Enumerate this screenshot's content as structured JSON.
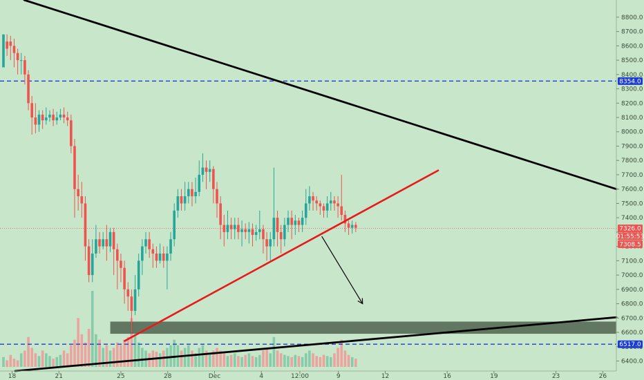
{
  "chart_data": {
    "type": "candlestick",
    "y_axis": {
      "range": [
        6330,
        8920
      ],
      "ticks": [
        "8800.0",
        "8700.0",
        "8600.0",
        "8500.0",
        "8400.0",
        "8300.0",
        "8200.0",
        "8100.0",
        "8000.0",
        "7900.0",
        "7800.0",
        "7700.0",
        "7600.0",
        "7500.0",
        "7400.0",
        "7300.0",
        "7200.0",
        "7100.0",
        "7000.0",
        "6900.0",
        "6800.0",
        "6700.0",
        "6600.0",
        "6500.0",
        "6400.0"
      ],
      "tick_values": [
        8800,
        8700,
        8600,
        8500,
        8400,
        8300,
        8200,
        8100,
        8000,
        7900,
        7800,
        7700,
        7600,
        7500,
        7400,
        7300,
        7200,
        7100,
        7000,
        6900,
        6800,
        6700,
        6600,
        6500,
        6400
      ]
    },
    "x_axis": {
      "range": [
        0,
        40.8
      ],
      "ticks": [
        {
          "label": "18",
          "value": 0.8
        },
        {
          "label": "21",
          "value": 3.9
        },
        {
          "label": "25",
          "value": 8.0
        },
        {
          "label": "28",
          "value": 11.1
        },
        {
          "label": "Dec",
          "value": 14.2
        },
        {
          "label": "4",
          "value": 17.3
        },
        {
          "label": "12:00",
          "value": 19.85
        },
        {
          "label": "9",
          "value": 22.4
        },
        {
          "label": "12",
          "value": 25.5
        },
        {
          "label": "16",
          "value": 29.6
        },
        {
          "label": "19",
          "value": 32.7
        },
        {
          "label": "23",
          "value": 36.8
        },
        {
          "label": "26",
          "value": 39.9
        }
      ]
    },
    "price_tags": [
      {
        "label": "8354.0",
        "value": 8354,
        "color": "#1a3bd6"
      },
      {
        "label": "7326.0",
        "value": 7326,
        "color": "#ef5350"
      },
      {
        "label": "01:55:53",
        "value": 7290,
        "color": "#ef5350"
      },
      {
        "label": "7308.5",
        "value": 7260,
        "color": "#ef5350"
      },
      {
        "label": "6517.0",
        "value": 6517,
        "color": "#1a3bd6"
      }
    ],
    "horizontal_lines": [
      {
        "value": 8354,
        "color": "#1a3bd6",
        "style": "dashed"
      },
      {
        "value": 6517,
        "color": "#1a3bd6",
        "style": "dashed"
      },
      {
        "value": 7326,
        "color": "#ef5350",
        "style": "dotted"
      }
    ],
    "trendlines": [
      {
        "name": "upper-resistance",
        "from": [
          1.6,
          8920
        ],
        "to": [
          40.8,
          7600
        ],
        "color": "#000000"
      },
      {
        "name": "lower-support",
        "from": [
          1.0,
          6330
        ],
        "to": [
          40.8,
          6705
        ],
        "color": "#000000"
      },
      {
        "name": "rising-support",
        "from": [
          8.25,
          6540
        ],
        "to": [
          29.0,
          7730
        ],
        "color": "#e8191c"
      }
    ],
    "zone": {
      "from_x": 7.3,
      "to_x": 40.8,
      "low": 6590,
      "high": 6675,
      "color": "#4f6350"
    },
    "arrow": {
      "from": [
        21.3,
        7270
      ],
      "to": [
        24.0,
        6800
      ],
      "color": "#000000"
    },
    "candles_ohlc": [
      [
        8.45,
        8.68,
        8.55,
        8.63
      ],
      [
        8.63,
        8.58,
        8.68,
        8.53
      ],
      [
        8.63,
        8.6,
        8.67,
        8.5
      ],
      [
        8.6,
        8.55,
        8.65,
        8.45
      ],
      [
        8.55,
        8.5,
        8.58,
        8.4
      ],
      [
        8.5,
        8.5,
        8.55,
        8.4
      ],
      [
        8.5,
        8.4,
        8.53,
        8.33
      ],
      [
        8.4,
        8.2,
        8.43,
        8.15
      ],
      [
        8.2,
        8.1,
        8.25,
        7.98
      ],
      [
        8.1,
        8.05,
        8.2,
        7.99
      ],
      [
        8.05,
        8.12,
        8.15,
        8.0
      ],
      [
        8.12,
        8.08,
        8.15,
        8.02
      ],
      [
        8.08,
        8.1,
        8.17,
        8.05
      ],
      [
        8.1,
        8.12,
        8.15,
        8.07
      ],
      [
        8.12,
        8.08,
        8.16,
        8.04
      ],
      [
        8.08,
        8.1,
        8.14,
        8.05
      ],
      [
        8.1,
        8.12,
        8.16,
        8.08
      ],
      [
        8.12,
        8.1,
        8.17,
        8.06
      ],
      [
        8.1,
        8.08,
        8.14,
        8.04
      ],
      [
        8.08,
        7.9,
        8.12,
        7.85
      ],
      [
        7.9,
        7.6,
        7.95,
        7.4
      ],
      [
        7.6,
        7.55,
        7.7,
        7.45
      ],
      [
        7.55,
        7.5,
        7.65,
        7.4
      ],
      [
        7.5,
        7.2,
        7.55,
        7.1
      ],
      [
        7.2,
        7.0,
        7.25,
        6.95
      ],
      [
        7.0,
        7.15,
        7.25,
        6.95
      ],
      [
        7.15,
        7.25,
        7.35,
        7.12
      ],
      [
        7.25,
        7.2,
        7.3,
        7.15
      ],
      [
        7.2,
        7.25,
        7.3,
        7.18
      ],
      [
        7.25,
        7.2,
        7.35,
        7.1
      ],
      [
        7.2,
        7.3,
        7.33,
        7.16
      ],
      [
        7.3,
        7.18,
        7.33,
        7.0
      ],
      [
        7.18,
        7.1,
        7.22,
        6.9
      ],
      [
        7.1,
        7.05,
        7.15,
        6.95
      ],
      [
        7.05,
        6.9,
        7.1,
        6.8
      ],
      [
        6.9,
        6.85,
        6.95,
        6.75
      ],
      [
        6.85,
        6.75,
        6.9,
        6.6
      ],
      [
        6.75,
        6.9,
        7.0,
        6.72
      ],
      [
        6.9,
        7.1,
        7.15,
        6.85
      ],
      [
        7.1,
        7.2,
        7.25,
        7.0
      ],
      [
        7.2,
        7.25,
        7.3,
        7.15
      ],
      [
        7.25,
        7.18,
        7.3,
        7.12
      ],
      [
        7.18,
        7.15,
        7.22,
        7.05
      ],
      [
        7.15,
        7.1,
        7.2,
        7.05
      ],
      [
        7.1,
        7.15,
        7.22,
        7.08
      ],
      [
        7.15,
        7.1,
        7.2,
        7.05
      ],
      [
        7.1,
        7.15,
        7.2,
        6.9
      ],
      [
        7.15,
        7.25,
        7.3,
        7.1
      ],
      [
        7.25,
        7.45,
        7.5,
        7.2
      ],
      [
        7.45,
        7.55,
        7.6,
        7.4
      ],
      [
        7.55,
        7.5,
        7.6,
        7.45
      ],
      [
        7.5,
        7.55,
        7.65,
        7.45
      ],
      [
        7.55,
        7.6,
        7.65,
        7.5
      ],
      [
        7.6,
        7.55,
        7.65,
        7.48
      ],
      [
        7.55,
        7.58,
        7.68,
        7.5
      ],
      [
        7.58,
        7.7,
        7.8,
        7.55
      ],
      [
        7.7,
        7.75,
        7.85,
        7.65
      ],
      [
        7.75,
        7.72,
        7.8,
        7.6
      ],
      [
        7.72,
        7.74,
        7.8,
        7.65
      ],
      [
        7.74,
        7.6,
        7.76,
        7.5
      ],
      [
        7.6,
        7.5,
        7.65,
        7.4
      ],
      [
        7.5,
        7.35,
        7.55,
        7.25
      ],
      [
        7.35,
        7.3,
        7.42,
        7.2
      ],
      [
        7.3,
        7.35,
        7.45,
        7.25
      ],
      [
        7.35,
        7.32,
        7.4,
        7.25
      ],
      [
        7.32,
        7.35,
        7.4,
        7.25
      ],
      [
        7.35,
        7.3,
        7.4,
        7.25
      ],
      [
        7.3,
        7.32,
        7.38,
        7.2
      ],
      [
        7.32,
        7.3,
        7.36,
        7.25
      ],
      [
        7.3,
        7.32,
        7.37,
        7.22
      ],
      [
        7.32,
        7.28,
        7.36,
        7.2
      ],
      [
        7.28,
        7.3,
        7.35,
        7.24
      ],
      [
        7.3,
        7.32,
        7.45,
        7.25
      ],
      [
        7.32,
        7.25,
        7.35,
        7.15
      ],
      [
        7.25,
        7.2,
        7.3,
        7.1
      ],
      [
        7.2,
        7.25,
        7.3,
        7.1
      ],
      [
        7.25,
        7.4,
        7.75,
        7.2
      ],
      [
        7.4,
        7.3,
        7.45,
        7.2
      ],
      [
        7.3,
        7.25,
        7.35,
        7.15
      ],
      [
        7.25,
        7.35,
        7.4,
        7.2
      ],
      [
        7.35,
        7.4,
        7.45,
        7.3
      ],
      [
        7.4,
        7.35,
        7.45,
        7.25
      ],
      [
        7.35,
        7.38,
        7.42,
        7.28
      ],
      [
        7.38,
        7.35,
        7.4,
        7.3
      ],
      [
        7.35,
        7.4,
        7.45,
        7.3
      ],
      [
        7.4,
        7.5,
        7.6,
        7.35
      ],
      [
        7.5,
        7.55,
        7.62,
        7.45
      ],
      [
        7.55,
        7.52,
        7.58,
        7.45
      ],
      [
        7.52,
        7.5,
        7.55,
        7.45
      ],
      [
        7.5,
        7.48,
        7.52,
        7.42
      ],
      [
        7.48,
        7.45,
        7.5,
        7.4
      ],
      [
        7.45,
        7.5,
        7.55,
        7.4
      ],
      [
        7.5,
        7.52,
        7.58,
        7.45
      ],
      [
        7.52,
        7.5,
        7.55,
        7.45
      ],
      [
        7.5,
        7.48,
        7.55,
        7.4
      ],
      [
        7.48,
        7.42,
        7.7,
        7.38
      ],
      [
        7.42,
        7.36,
        7.45,
        7.3
      ],
      [
        7.36,
        7.33,
        7.38,
        7.28
      ],
      [
        7.33,
        7.35,
        7.38,
        7.29
      ],
      [
        7.35,
        7.33,
        7.37,
        7.3
      ]
    ],
    "volumes": [
      0.18,
      0.12,
      0.22,
      0.15,
      0.12,
      0.25,
      0.3,
      0.55,
      0.35,
      0.25,
      0.2,
      0.3,
      0.25,
      0.2,
      0.15,
      0.18,
      0.22,
      0.3,
      0.25,
      0.4,
      0.5,
      0.9,
      0.6,
      0.45,
      0.7,
      1.4,
      0.6,
      0.5,
      0.35,
      0.4,
      0.3,
      0.35,
      0.45,
      0.4,
      0.5,
      0.55,
      0.9,
      0.6,
      0.45,
      0.35,
      0.3,
      0.25,
      0.3,
      0.28,
      0.25,
      0.3,
      0.35,
      0.4,
      0.5,
      0.4,
      0.3,
      0.35,
      0.4,
      0.3,
      0.25,
      0.35,
      0.4,
      0.3,
      0.25,
      0.3,
      0.35,
      0.3,
      0.25,
      0.2,
      0.22,
      0.25,
      0.2,
      0.18,
      0.22,
      0.25,
      0.2,
      0.18,
      0.22,
      0.3,
      0.35,
      0.25,
      0.55,
      0.3,
      0.25,
      0.22,
      0.2,
      0.18,
      0.22,
      0.2,
      0.18,
      0.25,
      0.3,
      0.25,
      0.2,
      0.18,
      0.22,
      0.2,
      0.18,
      0.25,
      0.35,
      0.5,
      0.3,
      0.22,
      0.18,
      0.15
    ],
    "volume_panel": {
      "max_value": 1.4
    },
    "colors": {
      "up": "#26a69a",
      "down": "#ef5350",
      "background": "#c8e6c9"
    }
  }
}
